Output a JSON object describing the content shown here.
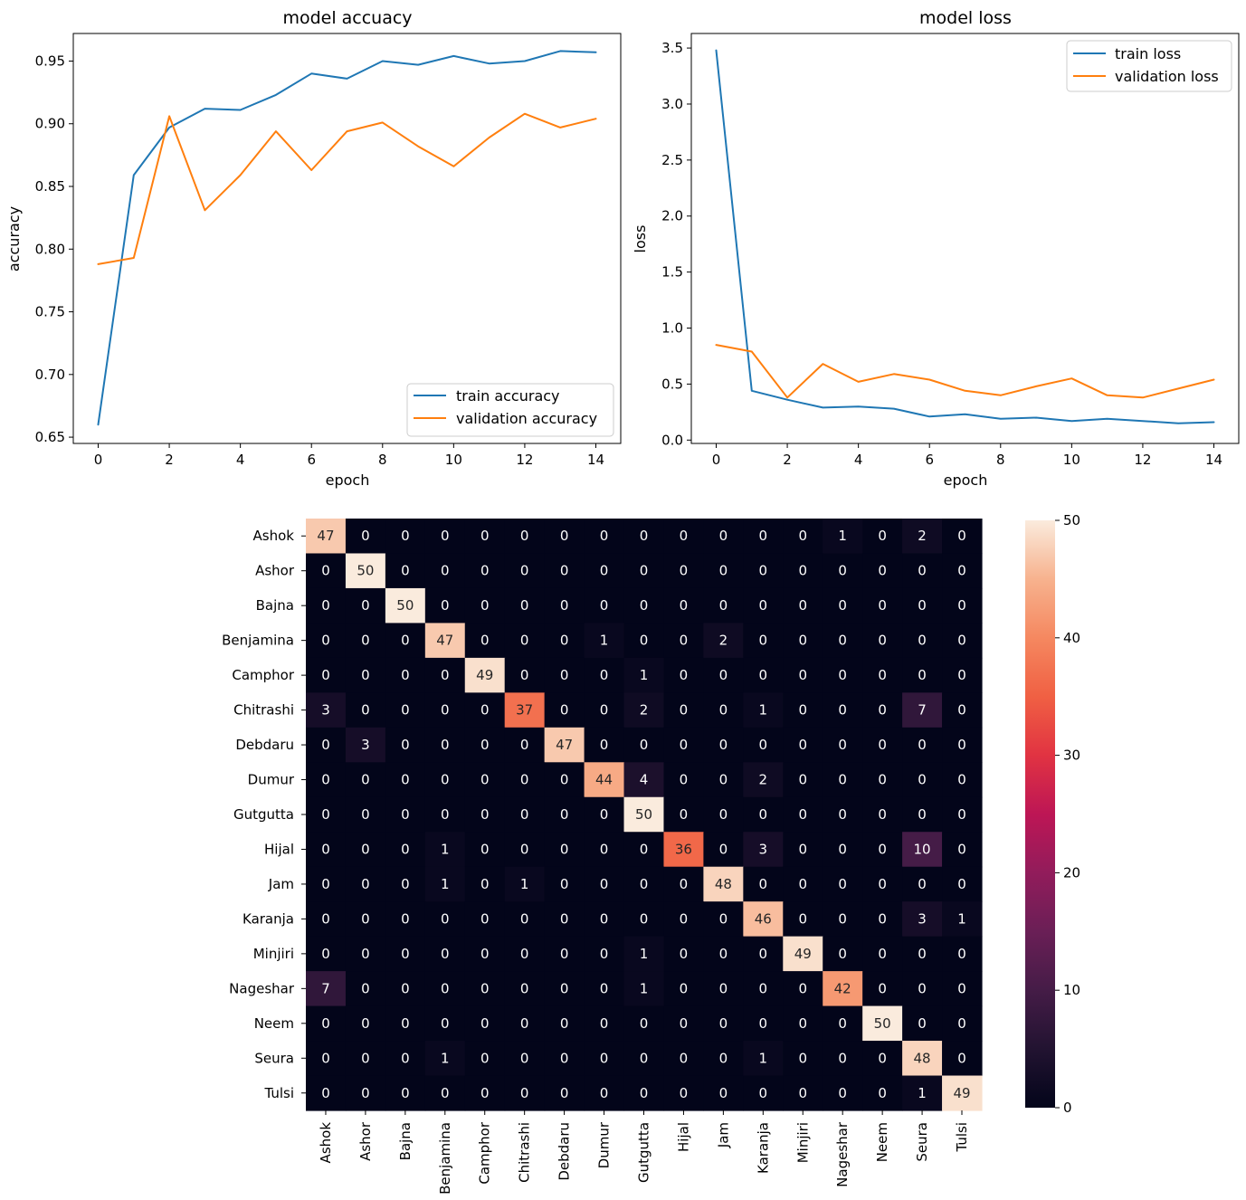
{
  "chart_data": [
    {
      "type": "line",
      "title": "model accuacy",
      "xlabel": "epoch",
      "ylabel": "accuracy",
      "xlim": [
        -0.7,
        14.7
      ],
      "ylim": [
        0.645,
        0.972
      ],
      "xticks": [
        0,
        2,
        4,
        6,
        8,
        10,
        12,
        14
      ],
      "yticks": [
        0.65,
        0.7,
        0.75,
        0.8,
        0.85,
        0.9,
        0.95
      ],
      "ytick_labels": [
        "0.65",
        "0.70",
        "0.75",
        "0.80",
        "0.85",
        "0.90",
        "0.95"
      ],
      "legend_position": "lower-right",
      "x": [
        0,
        1,
        2,
        3,
        4,
        5,
        6,
        7,
        8,
        9,
        10,
        11,
        12,
        13,
        14
      ],
      "series": [
        {
          "name": "train accuracy",
          "color": "#1f77b4",
          "values": [
            0.66,
            0.859,
            0.897,
            0.912,
            0.911,
            0.923,
            0.94,
            0.936,
            0.95,
            0.947,
            0.954,
            0.948,
            0.95,
            0.958,
            0.957
          ]
        },
        {
          "name": "validation accuracy",
          "color": "#ff7f0e",
          "values": [
            0.788,
            0.793,
            0.906,
            0.831,
            0.859,
            0.894,
            0.863,
            0.894,
            0.901,
            0.882,
            0.866,
            0.889,
            0.908,
            0.897,
            0.904
          ]
        }
      ]
    },
    {
      "type": "line",
      "title": "model loss",
      "xlabel": "epoch",
      "ylabel": "loss",
      "xlim": [
        -0.7,
        14.7
      ],
      "ylim": [
        -0.03,
        3.63
      ],
      "xticks": [
        0,
        2,
        4,
        6,
        8,
        10,
        12,
        14
      ],
      "yticks": [
        0.0,
        0.5,
        1.0,
        1.5,
        2.0,
        2.5,
        3.0,
        3.5
      ],
      "ytick_labels": [
        "0.0",
        "0.5",
        "1.0",
        "1.5",
        "2.0",
        "2.5",
        "3.0",
        "3.5"
      ],
      "legend_position": "upper-right",
      "x": [
        0,
        1,
        2,
        3,
        4,
        5,
        6,
        7,
        8,
        9,
        10,
        11,
        12,
        13,
        14
      ],
      "series": [
        {
          "name": "train loss",
          "color": "#1f77b4",
          "values": [
            3.48,
            0.44,
            0.36,
            0.29,
            0.3,
            0.28,
            0.21,
            0.23,
            0.19,
            0.2,
            0.17,
            0.19,
            0.17,
            0.15,
            0.16
          ]
        },
        {
          "name": "validation loss",
          "color": "#ff7f0e",
          "values": [
            0.85,
            0.79,
            0.38,
            0.68,
            0.52,
            0.59,
            0.54,
            0.44,
            0.4,
            0.48,
            0.55,
            0.4,
            0.38,
            0.46,
            0.54
          ]
        }
      ]
    },
    {
      "type": "heatmap",
      "title": "",
      "labels": [
        "Ashok",
        "Ashor",
        "Bajna",
        "Benjamina",
        "Camphor",
        "Chitrashi",
        "Debdaru",
        "Dumur",
        "Gutgutta",
        "Hijal",
        "Jam",
        "Karanja",
        "Minjiri",
        "Nageshar",
        "Neem",
        "Seura",
        "Tulsi"
      ],
      "colorbar": {
        "min": 0,
        "max": 50,
        "ticks": [
          0,
          10,
          20,
          30,
          40,
          50
        ]
      },
      "matrix": [
        [
          47,
          0,
          0,
          0,
          0,
          0,
          0,
          0,
          0,
          0,
          0,
          0,
          0,
          1,
          0,
          2,
          0
        ],
        [
          0,
          50,
          0,
          0,
          0,
          0,
          0,
          0,
          0,
          0,
          0,
          0,
          0,
          0,
          0,
          0,
          0
        ],
        [
          0,
          0,
          50,
          0,
          0,
          0,
          0,
          0,
          0,
          0,
          0,
          0,
          0,
          0,
          0,
          0,
          0
        ],
        [
          0,
          0,
          0,
          47,
          0,
          0,
          0,
          1,
          0,
          0,
          2,
          0,
          0,
          0,
          0,
          0,
          0
        ],
        [
          0,
          0,
          0,
          0,
          49,
          0,
          0,
          0,
          1,
          0,
          0,
          0,
          0,
          0,
          0,
          0,
          0
        ],
        [
          3,
          0,
          0,
          0,
          0,
          37,
          0,
          0,
          2,
          0,
          0,
          1,
          0,
          0,
          0,
          7,
          0
        ],
        [
          0,
          3,
          0,
          0,
          0,
          0,
          47,
          0,
          0,
          0,
          0,
          0,
          0,
          0,
          0,
          0,
          0
        ],
        [
          0,
          0,
          0,
          0,
          0,
          0,
          0,
          44,
          4,
          0,
          0,
          2,
          0,
          0,
          0,
          0,
          0
        ],
        [
          0,
          0,
          0,
          0,
          0,
          0,
          0,
          0,
          50,
          0,
          0,
          0,
          0,
          0,
          0,
          0,
          0
        ],
        [
          0,
          0,
          0,
          1,
          0,
          0,
          0,
          0,
          0,
          36,
          0,
          3,
          0,
          0,
          0,
          10,
          0
        ],
        [
          0,
          0,
          0,
          1,
          0,
          1,
          0,
          0,
          0,
          0,
          48,
          0,
          0,
          0,
          0,
          0,
          0
        ],
        [
          0,
          0,
          0,
          0,
          0,
          0,
          0,
          0,
          0,
          0,
          0,
          46,
          0,
          0,
          0,
          3,
          1
        ],
        [
          0,
          0,
          0,
          0,
          0,
          0,
          0,
          0,
          1,
          0,
          0,
          0,
          49,
          0,
          0,
          0,
          0
        ],
        [
          7,
          0,
          0,
          0,
          0,
          0,
          0,
          0,
          1,
          0,
          0,
          0,
          0,
          42,
          0,
          0,
          0
        ],
        [
          0,
          0,
          0,
          0,
          0,
          0,
          0,
          0,
          0,
          0,
          0,
          0,
          0,
          0,
          50,
          0,
          0
        ],
        [
          0,
          0,
          0,
          1,
          0,
          0,
          0,
          0,
          0,
          0,
          0,
          1,
          0,
          0,
          0,
          48,
          0
        ],
        [
          0,
          0,
          0,
          0,
          0,
          0,
          0,
          0,
          0,
          0,
          0,
          0,
          0,
          0,
          0,
          1,
          49
        ]
      ]
    }
  ]
}
